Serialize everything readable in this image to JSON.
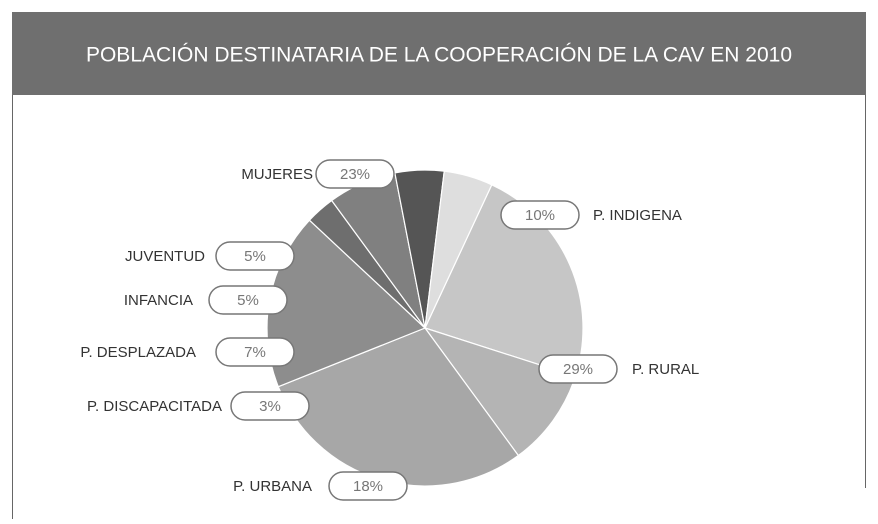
{
  "chart_data": {
    "type": "pie",
    "title": "POBLACIÓN DESTINATARIA DE LA COOPERACIÓN DE LA CAV EN 2010",
    "categories": [
      "MUJERES",
      "P. INDIGENA",
      "P. RURAL",
      "P. URBANA",
      "P. DISCAPACITADA",
      "P. DESPLAZADA",
      "INFANCIA",
      "JUVENTUD"
    ],
    "values": [
      23,
      10,
      29,
      18,
      3,
      7,
      5,
      5
    ],
    "value_labels": [
      "23%",
      "10%",
      "29%",
      "18%",
      "3%",
      "7%",
      "5%",
      "5%"
    ],
    "colors": [
      "#c6c6c6",
      "#b4b4b4",
      "#a7a7a7",
      "#8d8d8d",
      "#6e6e6e",
      "#808080",
      "#555555",
      "#dedede"
    ]
  }
}
